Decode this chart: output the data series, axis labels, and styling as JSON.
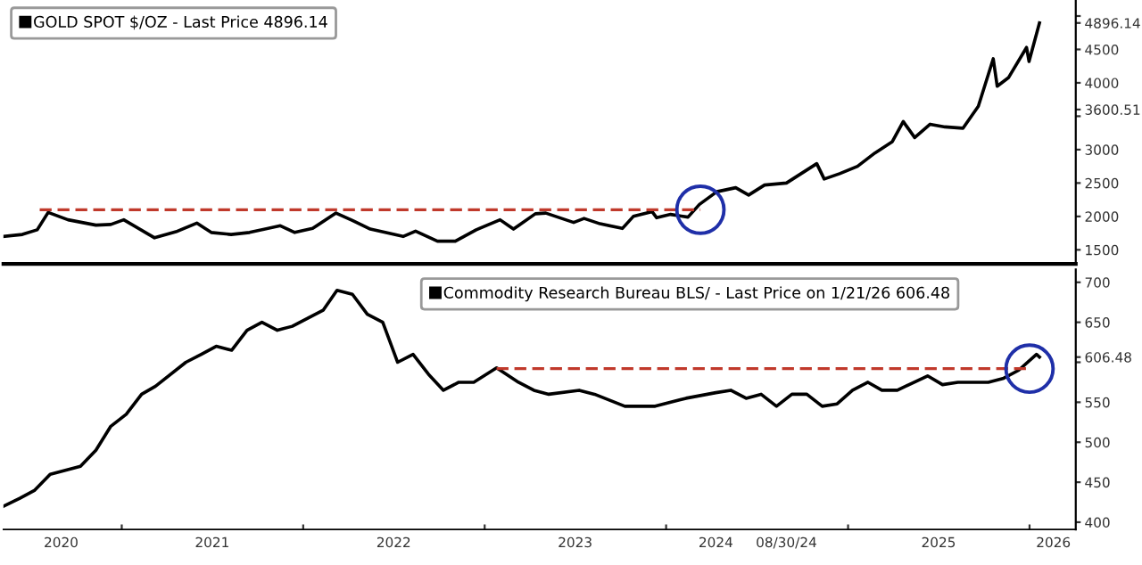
{
  "chart_data": [
    {
      "type": "line",
      "legend": "top left",
      "tick_labels": "y",
      "grid": false,
      "xlim": [
        "2020-05-08",
        "2026-04-04"
      ],
      "ylim": [
        1290,
        5240
      ],
      "yticks": [
        1500,
        2000,
        2500,
        3000,
        {
          "value": 3500,
          "label": null
        },
        {
          "value": 3600.51,
          "label": "3600.51"
        },
        4000,
        4500,
        {
          "value": 4896.14,
          "label": "4896.14"
        },
        {
          "value": 5000,
          "label": null
        }
      ],
      "series": [
        {
          "name": "GOLD SPOT $/OZ - Last Price 4896.14",
          "color": "#000000",
          "x": [
            "2020-05-08",
            "2020-06-15",
            "2020-07-15",
            "2020-08-06",
            "2020-09-15",
            "2020-11-10",
            "2020-12-10",
            "2021-01-05",
            "2021-03-08",
            "2021-04-20",
            "2021-06-01",
            "2021-06-30",
            "2021-08-09",
            "2021-09-15",
            "2021-11-16",
            "2021-12-15",
            "2022-01-20",
            "2022-03-08",
            "2022-04-10",
            "2022-05-16",
            "2022-07-21",
            "2022-08-15",
            "2022-09-28",
            "2022-11-03",
            "2022-12-15",
            "2023-02-01",
            "2023-02-28",
            "2023-04-13",
            "2023-05-04",
            "2023-06-29",
            "2023-07-20",
            "2023-08-21",
            "2023-10-05",
            "2023-10-27",
            "2023-12-04",
            "2023-12-13",
            "2024-01-10",
            "2024-02-14",
            "2024-03-08",
            "2024-04-12",
            "2024-05-20",
            "2024-06-15",
            "2024-07-17",
            "2024-08-30",
            "2024-10-30",
            "2024-11-14",
            "2024-12-15",
            "2025-01-20",
            "2025-02-24",
            "2025-03-31",
            "2025-04-22",
            "2025-05-15",
            "2025-06-15",
            "2025-07-15",
            "2025-08-20",
            "2025-09-20",
            "2025-10-20",
            "2025-10-28",
            "2025-11-20",
            "2025-12-26",
            "2025-12-31",
            "2026-01-21"
          ],
          "values": [
            1700,
            1730,
            1800,
            2060,
            1950,
            1870,
            1880,
            1950,
            1680,
            1770,
            1900,
            1760,
            1730,
            1760,
            1860,
            1760,
            1820,
            2050,
            1940,
            1810,
            1700,
            1780,
            1630,
            1630,
            1800,
            1950,
            1810,
            2040,
            2050,
            1910,
            1970,
            1890,
            1820,
            2000,
            2070,
            1980,
            2030,
            1990,
            2180,
            2370,
            2430,
            2320,
            2470,
            2500,
            2790,
            2560,
            2640,
            2750,
            2950,
            3120,
            3420,
            3180,
            3380,
            3340,
            3320,
            3650,
            4360,
            3950,
            4080,
            4530,
            4320,
            4896.14
          ]
        },
        {
          "type": "line",
          "line_style": "dashed",
          "color": "#c0392b",
          "x": [
            "2020-07-20",
            "2024-03-10"
          ],
          "values": [
            2100,
            2100
          ]
        }
      ]
    },
    {
      "type": "line",
      "legend": "top",
      "grid": false,
      "xlim": [
        "2020-05-08",
        "2026-04-04"
      ],
      "ylim": [
        391,
        716
      ],
      "xticks": [
        {
          "value": "2020-09-01",
          "label": "2020"
        },
        {
          "value": "2021-01-01",
          "label": null
        },
        {
          "value": "2021-07-02",
          "label": "2021"
        },
        {
          "value": "2022-01-01",
          "label": null
        },
        {
          "value": "2022-07-02",
          "label": "2022"
        },
        {
          "value": "2023-01-01",
          "label": null
        },
        {
          "value": "2023-07-02",
          "label": "2023"
        },
        {
          "value": "2024-01-01",
          "label": null
        },
        {
          "value": "2024-04-10",
          "label": "2024"
        },
        {
          "value": "2024-08-30",
          "label": "08/30/24"
        },
        {
          "value": "2025-01-01",
          "label": null
        },
        {
          "value": "2025-07-02",
          "label": "2025"
        },
        {
          "value": "2026-01-01",
          "label": null
        },
        {
          "value": "2026-02-18",
          "label": "2026"
        }
      ],
      "yticks": [
        400,
        450,
        500,
        550,
        {
          "value": 600,
          "label": null
        },
        {
          "value": 606.48,
          "label": "606.48"
        },
        650,
        700
      ],
      "series": [
        {
          "name": "Commodity Research Bureau BLS/ - Last Price on 1/21/26 606.48",
          "color": "#000000",
          "x": [
            "2020-05-08",
            "2020-06-10",
            "2020-07-10",
            "2020-08-10",
            "2020-10-10",
            "2020-11-10",
            "2020-12-10",
            "2021-01-10",
            "2021-02-10",
            "2021-03-10",
            "2021-05-10",
            "2021-06-10",
            "2021-07-10",
            "2021-08-10",
            "2021-09-10",
            "2021-10-10",
            "2021-11-10",
            "2021-12-10",
            "2022-02-10",
            "2022-03-10",
            "2022-04-10",
            "2022-05-10",
            "2022-06-10",
            "2022-07-10",
            "2022-08-10",
            "2022-09-10",
            "2022-10-10",
            "2022-11-10",
            "2022-12-10",
            "2023-01-25",
            "2023-03-10",
            "2023-04-10",
            "2023-05-10",
            "2023-07-10",
            "2023-08-10",
            "2023-10-10",
            "2023-12-10",
            "2024-02-10",
            "2024-04-10",
            "2024-05-10",
            "2024-06-10",
            "2024-07-10",
            "2024-08-10",
            "2024-09-10",
            "2024-10-10",
            "2024-11-10",
            "2024-12-10",
            "2025-01-10",
            "2025-02-10",
            "2025-03-10",
            "2025-04-10",
            "2025-06-10",
            "2025-07-10",
            "2025-08-10",
            "2025-10-10",
            "2025-11-10",
            "2025-12-10",
            "2026-01-15",
            "2026-01-21"
          ],
          "values": [
            420,
            430,
            440,
            460,
            470,
            490,
            520,
            535,
            560,
            570,
            600,
            610,
            620,
            615,
            640,
            650,
            640,
            645,
            665,
            690,
            685,
            660,
            650,
            600,
            610,
            585,
            565,
            575,
            575,
            593,
            575,
            565,
            560,
            565,
            560,
            545,
            545,
            555,
            562,
            565,
            555,
            560,
            545,
            560,
            560,
            545,
            548,
            565,
            575,
            565,
            565,
            583,
            572,
            575,
            575,
            580,
            590,
            610,
            606.48
          ]
        },
        {
          "type": "line",
          "line_style": "dashed",
          "color": "#c0392b",
          "x": [
            "2023-01-25",
            "2026-01-01"
          ],
          "values": [
            592,
            592
          ]
        }
      ]
    }
  ]
}
